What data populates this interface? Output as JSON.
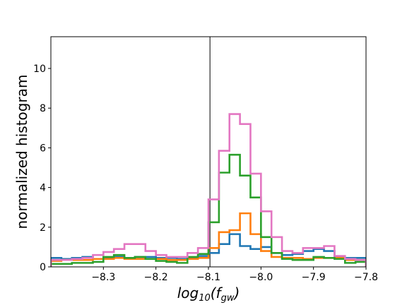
{
  "chart_data": {
    "type": "line",
    "subtype": "step-histogram",
    "xlabel": "log10(f_gw)",
    "xlabel_parts": {
      "base": "log",
      "sub1": "10",
      "open": "(",
      "var": "f",
      "sub2": "gw",
      "close": ")"
    },
    "ylabel": "normalized histogram",
    "xlim": [
      -8.4,
      -7.8
    ],
    "ylim": [
      0,
      11.6
    ],
    "xticks": [
      -8.3,
      -8.2,
      -8.1,
      -8.0,
      -7.9,
      -7.8
    ],
    "xtick_labels": [
      "−8.3",
      "−8.2",
      "−8.1",
      "−8.0",
      "−7.9",
      "−7.8"
    ],
    "yticks": [
      0,
      2,
      4,
      6,
      8,
      10
    ],
    "ytick_labels": [
      "0",
      "2",
      "4",
      "6",
      "8",
      "10"
    ],
    "grid": false,
    "vline": {
      "x": -8.097,
      "color": "#555555"
    },
    "bin_edges": [
      -8.4,
      -8.38,
      -8.36,
      -8.34,
      -8.32,
      -8.3,
      -8.28,
      -8.26,
      -8.24,
      -8.22,
      -8.2,
      -8.18,
      -8.16,
      -8.14,
      -8.12,
      -8.1,
      -8.08,
      -8.06,
      -8.04,
      -8.02,
      -8.0,
      -7.98,
      -7.96,
      -7.94,
      -7.92,
      -7.9,
      -7.88,
      -7.86,
      -7.84,
      -7.82,
      -7.8
    ],
    "series": [
      {
        "color": "#1f77b4",
        "values": [
          0.45,
          0.4,
          0.45,
          0.5,
          0.4,
          0.45,
          0.5,
          0.45,
          0.5,
          0.5,
          0.45,
          0.45,
          0.4,
          0.45,
          0.55,
          0.7,
          1.15,
          1.65,
          1.05,
          0.9,
          1.0,
          0.7,
          0.6,
          0.65,
          0.8,
          0.9,
          0.8,
          0.5,
          0.45,
          0.45
        ]
      },
      {
        "color": "#ff7f0e",
        "values": [
          0.3,
          0.35,
          0.35,
          0.35,
          0.4,
          0.4,
          0.45,
          0.4,
          0.4,
          0.4,
          0.4,
          0.35,
          0.35,
          0.4,
          0.45,
          0.95,
          1.75,
          1.85,
          2.7,
          1.65,
          0.8,
          0.5,
          0.45,
          0.45,
          0.4,
          0.45,
          0.45,
          0.45,
          0.35,
          0.35
        ]
      },
      {
        "color": "#2ca02c",
        "values": [
          0.15,
          0.15,
          0.2,
          0.2,
          0.25,
          0.5,
          0.6,
          0.45,
          0.5,
          0.4,
          0.3,
          0.25,
          0.2,
          0.5,
          0.65,
          2.25,
          4.75,
          5.65,
          4.6,
          3.5,
          1.5,
          0.7,
          0.4,
          0.35,
          0.35,
          0.5,
          0.45,
          0.4,
          0.2,
          0.25
        ]
      },
      {
        "color": "#e377c2",
        "values": [
          0.35,
          0.35,
          0.4,
          0.45,
          0.6,
          0.75,
          0.9,
          1.15,
          1.15,
          0.8,
          0.6,
          0.5,
          0.5,
          0.7,
          0.95,
          3.4,
          5.85,
          7.7,
          7.2,
          4.7,
          2.8,
          1.5,
          0.8,
          0.7,
          0.95,
          0.95,
          1.05,
          0.55,
          0.4,
          0.35
        ]
      }
    ]
  }
}
